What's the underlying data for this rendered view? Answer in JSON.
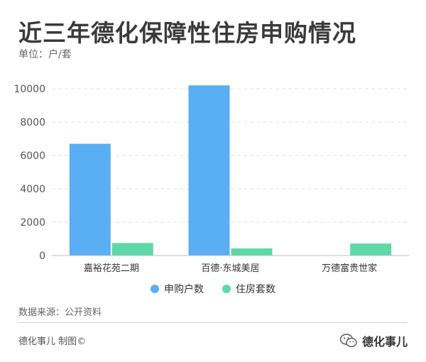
{
  "title": "近三年德化保障性住房申购情况",
  "unit_label": "单位：户/套",
  "source_label": "数据来源：公开资料",
  "credit_label": "德化事儿 制图©",
  "watermark_label": "德化事儿",
  "watermark_icon": "wechat-icon",
  "colors": {
    "series1": "#5aaef3",
    "series2": "#5fd8a8",
    "grid": "#e3e3e3",
    "axis": "#bdbdbd",
    "tick": "#555555"
  },
  "chart_data": {
    "type": "bar",
    "categories": [
      "嘉裕花苑二期",
      "百德·东城美居",
      "万德富贵世家"
    ],
    "series": [
      {
        "name": "申购户数",
        "values": [
          6700,
          10200,
          0
        ]
      },
      {
        "name": "住房套数",
        "values": [
          750,
          430,
          720
        ]
      }
    ],
    "ylim": [
      0,
      10000
    ],
    "yticks": [
      0,
      2000,
      4000,
      6000,
      8000,
      10000
    ],
    "xlabel": "",
    "ylabel": "",
    "grid": true,
    "legend": "bottom"
  }
}
